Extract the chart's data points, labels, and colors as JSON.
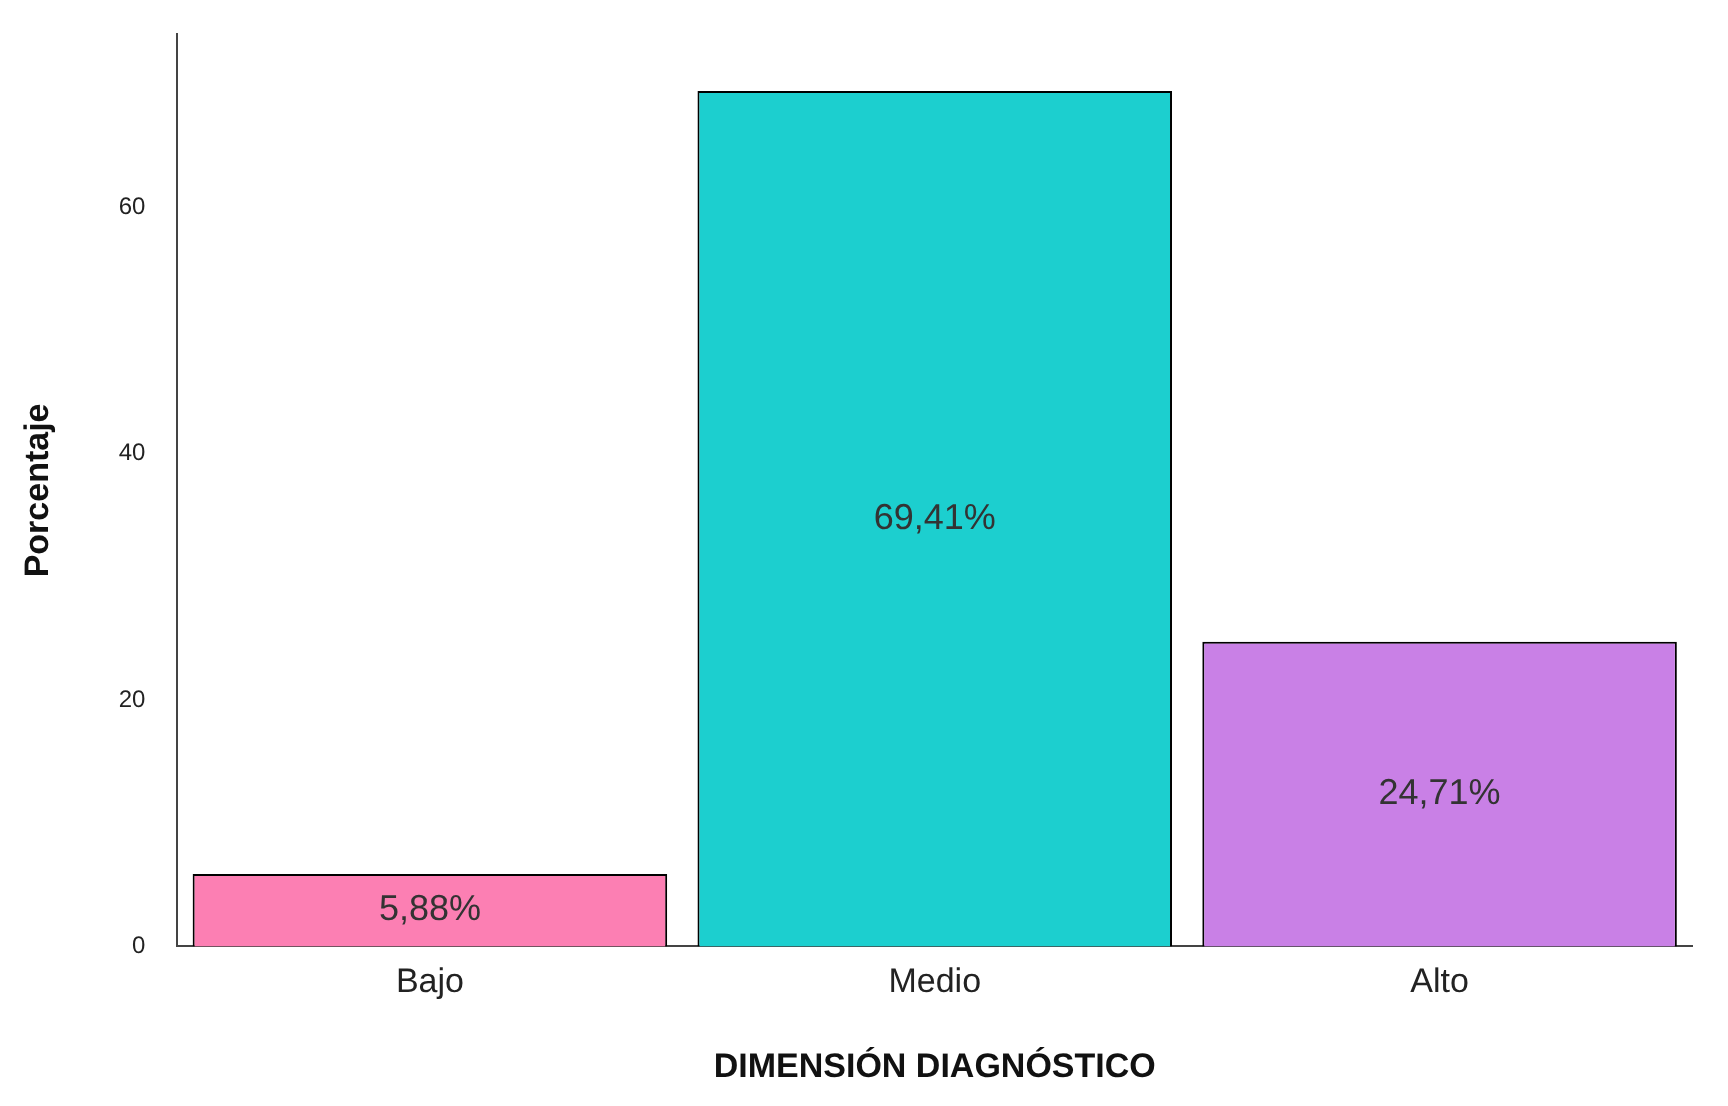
{
  "chart_data": {
    "type": "bar",
    "xlabel": "DIMENSIÓN DIAGNÓSTICO",
    "ylabel": "Porcentaje",
    "categories": [
      "Bajo",
      "Medio",
      "Alto"
    ],
    "values": [
      5.88,
      69.41,
      24.71
    ],
    "colors": [
      "#fc7fb3",
      "#1ccfcf",
      "#c980e6"
    ],
    "value_labels": [
      "5,88%",
      "69,41%",
      "24,71%"
    ],
    "ylim": [
      0,
      74
    ],
    "yticks": [
      0,
      20,
      40,
      60
    ],
    "grid": false,
    "legend": false
  }
}
